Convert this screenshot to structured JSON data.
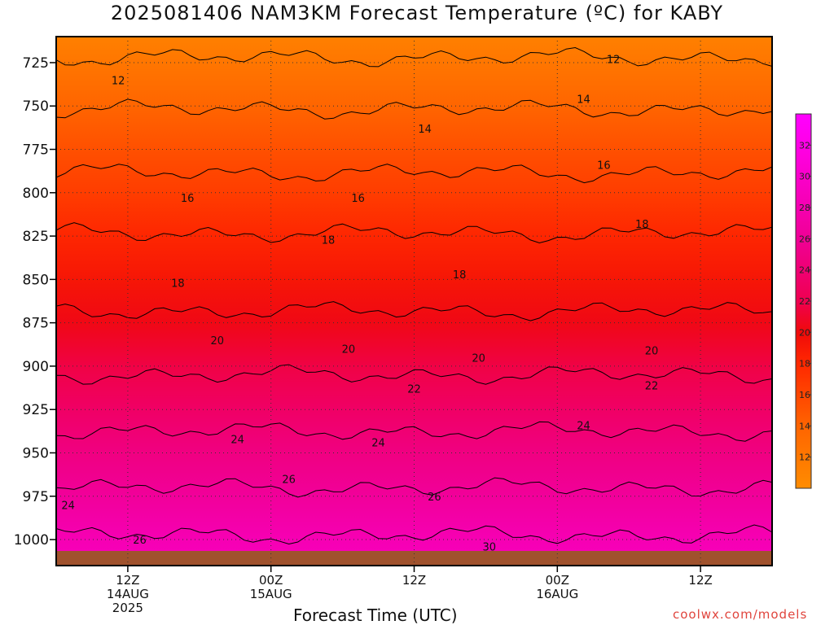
{
  "title": "2025081406 NAM3KM Forecast Temperature (ºC) for KABY",
  "footer": {
    "xlabel": "Forecast Time (UTC)",
    "credit": "coolwx.com/models"
  },
  "chart_data": {
    "type": "heatmap",
    "title": "2025081406 NAM3KM Forecast Temperature (ºC) for KABY",
    "xlabel": "Forecast Time (UTC)",
    "ylabel": "",
    "x_range_hours_from_init": [
      0,
      60
    ],
    "x_ticks": [
      {
        "hour": 6,
        "lines": [
          "12Z",
          "14AUG",
          "2025"
        ]
      },
      {
        "hour": 18,
        "lines": [
          "00Z",
          "15AUG"
        ]
      },
      {
        "hour": 30,
        "lines": [
          "12Z"
        ]
      },
      {
        "hour": 42,
        "lines": [
          "00Z",
          "16AUG"
        ]
      },
      {
        "hour": 54,
        "lines": [
          "12Z"
        ]
      }
    ],
    "y_axis": {
      "unit": "hPa",
      "reversed": true,
      "range": [
        710,
        1015
      ],
      "ticks": [
        725,
        750,
        775,
        800,
        825,
        850,
        875,
        900,
        925,
        950,
        975,
        1000
      ]
    },
    "grid": true,
    "colorbar": {
      "ticks": [
        12,
        14,
        16,
        18,
        20,
        22,
        24,
        26,
        28,
        30,
        32
      ],
      "range": [
        10,
        34
      ]
    },
    "surface_color": "#a0522d",
    "temperature_profile": {
      "pressure": [
        710,
        725,
        750,
        775,
        800,
        825,
        850,
        875,
        900,
        925,
        950,
        975,
        1000,
        1015
      ],
      "temp_c": [
        11.2,
        12.2,
        13.9,
        15.3,
        16.6,
        18.1,
        19.2,
        20.3,
        21.7,
        23.2,
        24.8,
        26.3,
        28.2,
        29.0
      ]
    },
    "contour_labels": [
      {
        "text": "12",
        "hour": 5.2,
        "pressure": 735
      },
      {
        "text": "12",
        "hour": 46.7,
        "pressure": 723
      },
      {
        "text": "14",
        "hour": 30.9,
        "pressure": 763
      },
      {
        "text": "14",
        "hour": 44.2,
        "pressure": 746
      },
      {
        "text": "16",
        "hour": 11.0,
        "pressure": 803
      },
      {
        "text": "16",
        "hour": 25.3,
        "pressure": 803
      },
      {
        "text": "16",
        "hour": 45.9,
        "pressure": 784
      },
      {
        "text": "18",
        "hour": 10.2,
        "pressure": 852
      },
      {
        "text": "18",
        "hour": 22.8,
        "pressure": 827
      },
      {
        "text": "18",
        "hour": 33.8,
        "pressure": 847
      },
      {
        "text": "18",
        "hour": 49.1,
        "pressure": 818
      },
      {
        "text": "20",
        "hour": 13.5,
        "pressure": 885
      },
      {
        "text": "20",
        "hour": 24.5,
        "pressure": 890
      },
      {
        "text": "20",
        "hour": 35.4,
        "pressure": 895
      },
      {
        "text": "20",
        "hour": 49.9,
        "pressure": 891
      },
      {
        "text": "22",
        "hour": 30.0,
        "pressure": 913
      },
      {
        "text": "22",
        "hour": 49.9,
        "pressure": 911
      },
      {
        "text": "24",
        "hour": 15.2,
        "pressure": 942
      },
      {
        "text": "24",
        "hour": 27.0,
        "pressure": 944
      },
      {
        "text": "24",
        "hour": 44.2,
        "pressure": 934
      },
      {
        "text": "24",
        "hour": 1.0,
        "pressure": 980
      },
      {
        "text": "26",
        "hour": 19.5,
        "pressure": 965
      },
      {
        "text": "26",
        "hour": 31.7,
        "pressure": 975
      },
      {
        "text": "26",
        "hour": 7.0,
        "pressure": 1000
      },
      {
        "text": "30",
        "hour": 36.3,
        "pressure": 1004
      }
    ]
  }
}
